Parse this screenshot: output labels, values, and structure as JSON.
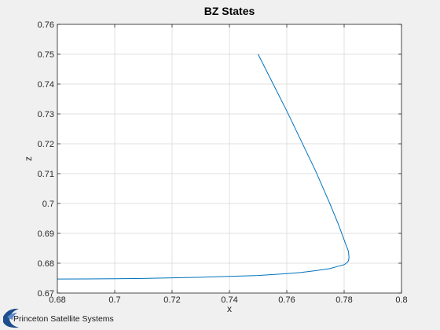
{
  "branding": {
    "logo_text": "Princeton Satellite Systems",
    "logo_color": "#1f4e8c"
  },
  "chart_data": {
    "type": "line",
    "title": "BZ States",
    "xlabel": "x",
    "ylabel": "z",
    "xlim": [
      0.68,
      0.8
    ],
    "ylim": [
      0.67,
      0.76
    ],
    "xticks": [
      "0.68",
      "0.7",
      "0.72",
      "0.74",
      "0.76",
      "0.78",
      "0.8"
    ],
    "yticks": [
      "0.67",
      "0.68",
      "0.69",
      "0.7",
      "0.71",
      "0.72",
      "0.73",
      "0.74",
      "0.75",
      "0.76"
    ],
    "grid": true,
    "line_color": "#0072bd",
    "series": [
      {
        "x": [
          0.75,
          0.755,
          0.76,
          0.765,
          0.77,
          0.775,
          0.778,
          0.7805,
          0.7815,
          0.7817,
          0.7815,
          0.781,
          0.78,
          0.778,
          0.775,
          0.77,
          0.765,
          0.76,
          0.75,
          0.74,
          0.73,
          0.72,
          0.71,
          0.7,
          0.69,
          0.68
        ],
        "y": [
          0.75,
          0.7405,
          0.731,
          0.721,
          0.711,
          0.7,
          0.693,
          0.6865,
          0.684,
          0.682,
          0.6808,
          0.6802,
          0.6795,
          0.679,
          0.6782,
          0.6775,
          0.6769,
          0.6765,
          0.6759,
          0.6756,
          0.6753,
          0.6751,
          0.6749,
          0.6748,
          0.67475,
          0.6747
        ]
      }
    ]
  }
}
